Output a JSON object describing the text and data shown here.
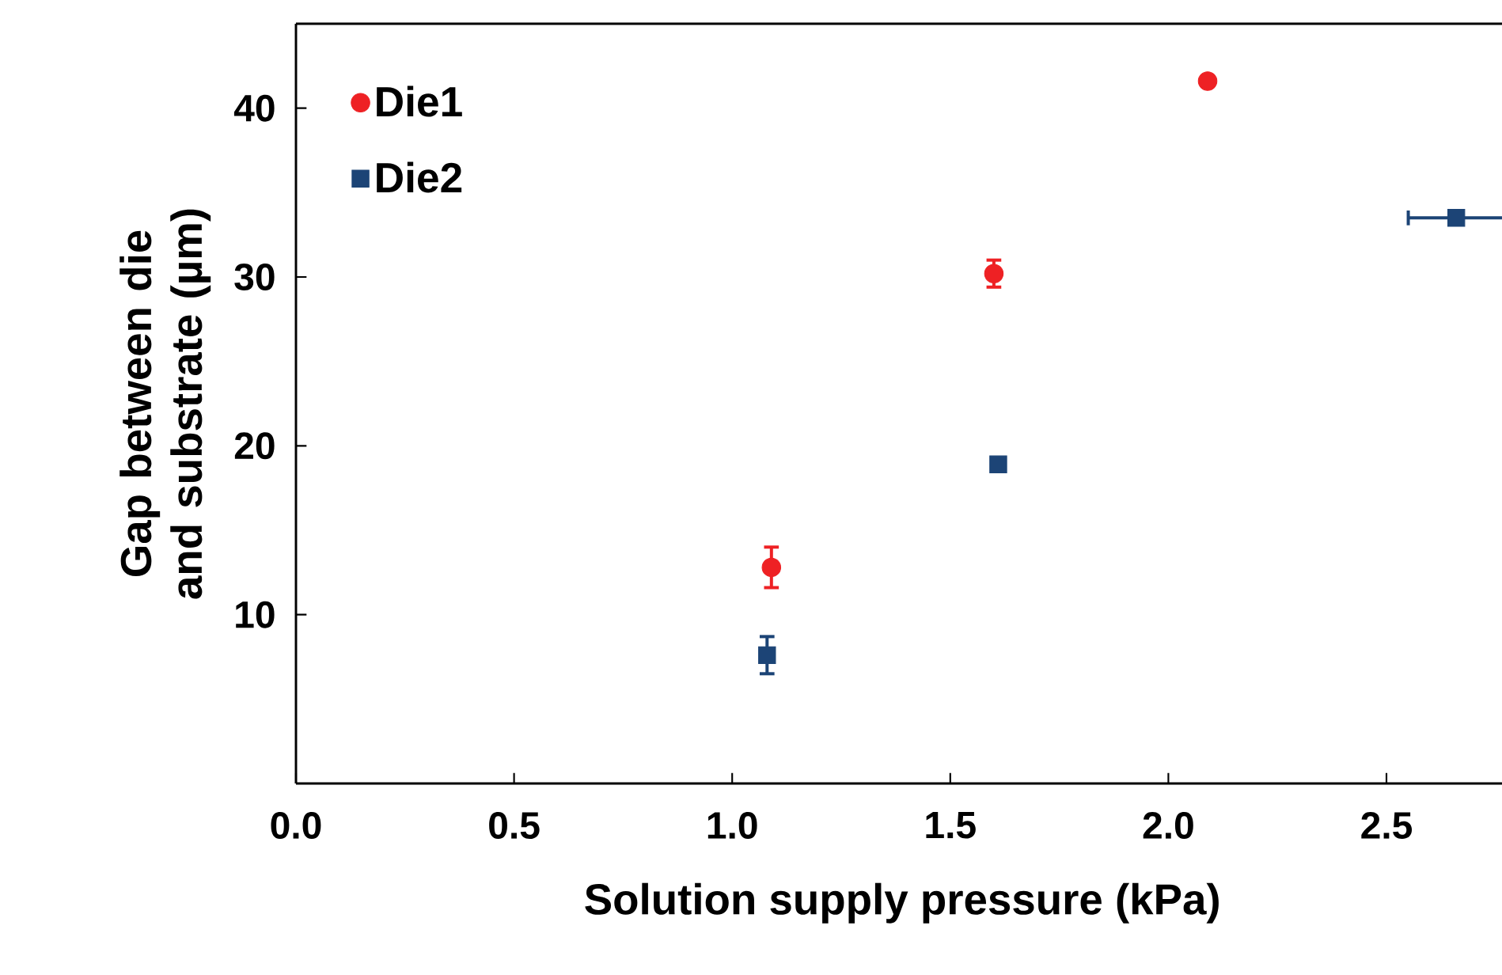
{
  "chart_data": {
    "type": "scatter",
    "xlabel": "Solution supply pressure (kPa)",
    "ylabel": "Gap between die and substrate (µm)",
    "xlim": [
      0,
      2.78
    ],
    "ylim": [
      0,
      45
    ],
    "xticks": [
      {
        "value": 0,
        "label": "0.0"
      },
      {
        "value": 0.5,
        "label": "0.5"
      },
      {
        "value": 1,
        "label": "1.0"
      },
      {
        "value": 1.5,
        "label": "1.5"
      },
      {
        "value": 2,
        "label": "2.0"
      },
      {
        "value": 2.5,
        "label": "2.5"
      }
    ],
    "yticks": [
      10,
      20,
      30,
      40
    ],
    "legend": "top left",
    "grid": false,
    "series": [
      {
        "name": "Die1",
        "color": "#ee2124",
        "marker": "circle",
        "x": [
          1.09,
          1.6,
          2.09
        ],
        "values": [
          12.8,
          30.2,
          41.6
        ],
        "errors": [
          1.2,
          0.8,
          null
        ]
      },
      {
        "name": "Die2",
        "color": "#1c4476",
        "marker": "square",
        "x": [
          1.08,
          1.61,
          2.66
        ],
        "values": [
          7.6,
          18.9,
          33.5
        ],
        "errors": [
          1.1,
          null,
          null
        ],
        "xerrors": [
          null,
          null,
          0.11
        ]
      }
    ]
  }
}
